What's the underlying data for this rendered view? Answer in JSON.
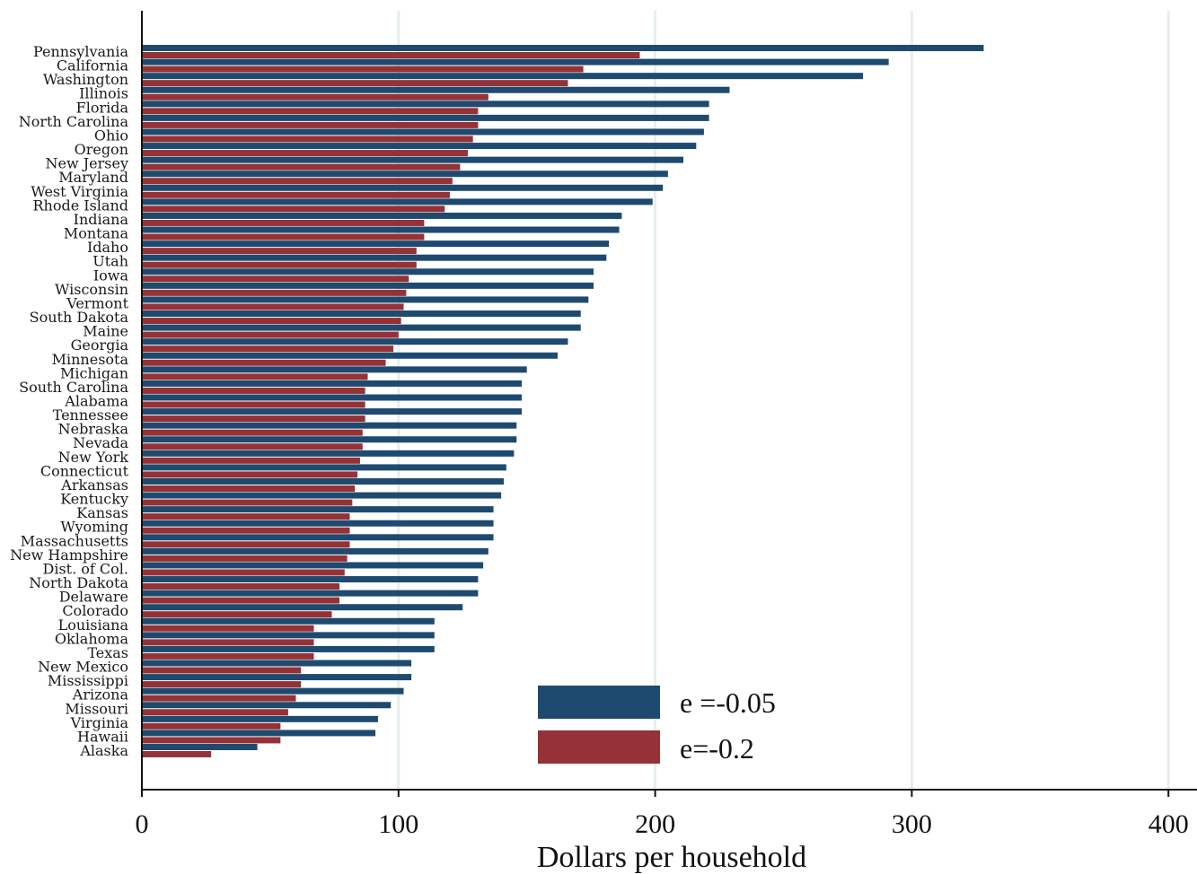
{
  "chart_data": {
    "type": "bar",
    "orientation": "horizontal",
    "xlabel": "Dollars per household",
    "xlim": [
      0,
      410
    ],
    "xticks": [
      0,
      100,
      200,
      300,
      400
    ],
    "grid": "vertical",
    "legend_position": "bottom-right",
    "categories": [
      "Pennsylvania",
      "California",
      "Washington",
      "Illinois",
      "Florida",
      "North Carolina",
      "Ohio",
      "Oregon",
      "New Jersey",
      "Maryland",
      "West Virginia",
      "Rhode Island",
      "Indiana",
      "Montana",
      "Idaho",
      "Utah",
      "Iowa",
      "Wisconsin",
      "Vermont",
      "South Dakota",
      "Maine",
      "Georgia",
      "Minnesota",
      "Michigan",
      "South Carolina",
      "Alabama",
      "Tennessee",
      "Nebraska",
      "Nevada",
      "New York",
      "Connecticut",
      "Arkansas",
      "Kentucky",
      "Kansas",
      "Wyoming",
      "Massachusetts",
      "New Hampshire",
      "Dist. of Col.",
      "North Dakota",
      "Delaware",
      "Colorado",
      "Louisiana",
      "Oklahoma",
      "Texas",
      "New Mexico",
      "Mississippi",
      "Arizona",
      "Missouri",
      "Virginia",
      "Hawaii",
      "Alaska"
    ],
    "series": [
      {
        "name": "e =-0.05",
        "color": "#1f4a70",
        "values": [
          328,
          291,
          281,
          229,
          221,
          221,
          219,
          216,
          211,
          205,
          203,
          199,
          187,
          186,
          182,
          181,
          176,
          176,
          174,
          171,
          171,
          166,
          162,
          150,
          148,
          148,
          148,
          146,
          146,
          145,
          142,
          141,
          140,
          137,
          137,
          137,
          135,
          133,
          131,
          131,
          125,
          114,
          114,
          114,
          105,
          105,
          102,
          97,
          92,
          91,
          45
        ]
      },
      {
        "name": "e=-0.2",
        "color": "#953237",
        "values": [
          194,
          172,
          166,
          135,
          131,
          131,
          129,
          127,
          124,
          121,
          120,
          118,
          110,
          110,
          107,
          107,
          104,
          103,
          102,
          101,
          100,
          98,
          95,
          88,
          87,
          87,
          87,
          86,
          86,
          85,
          84,
          83,
          82,
          81,
          81,
          81,
          80,
          79,
          77,
          77,
          74,
          67,
          67,
          67,
          62,
          62,
          60,
          57,
          54,
          54,
          27
        ]
      }
    ]
  }
}
